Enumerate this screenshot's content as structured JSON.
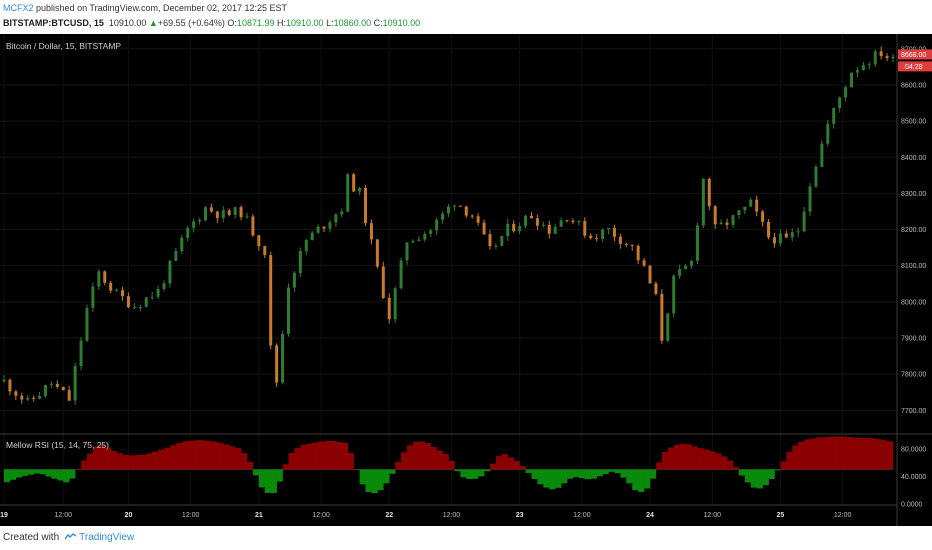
{
  "header": {
    "author": "MCFX2",
    "published_text": "published on TradingView.com, December 02, 2017 12:25 EST",
    "symbol": "BITSTAMP:BTCUSD, 15",
    "last": "10910.00",
    "change": "+69.55 (+0.64%)",
    "o_label": "O:",
    "o_value": "10871.99",
    "h_label": "H:",
    "h_value": "10910.00",
    "l_label": "L:",
    "l_value": "10860.00",
    "c_label": "C:",
    "c_value": "10910.00"
  },
  "footer": {
    "created_with": "Created with",
    "brand": "TradingView"
  },
  "colors": {
    "background": "#000000",
    "candle_up": "#2e7d32",
    "candle_down": "#c87b2a",
    "rsi_overbought": "#8b0000",
    "rsi_oversold": "#0a8a0a",
    "price_tag": "#e03e3e",
    "axis_text": "#bdbdbd",
    "author_link": "#2f8ede",
    "change_up": "#1a9a2e"
  },
  "chart_data": [
    {
      "type": "candlestick",
      "title": "Bitcoin / Dollar, 15, BITSTAMP",
      "ylim": [
        7640,
        8730
      ],
      "yticks": [
        "8700.00",
        "8600.00",
        "8500.00",
        "8400.00",
        "8300.00",
        "8200.00",
        "8100.00",
        "8000.00",
        "7900.00",
        "7800.00",
        "7700.00"
      ],
      "ytick_values": [
        8700,
        8600,
        8500,
        8400,
        8300,
        8200,
        8100,
        8000,
        7900,
        7800,
        7700
      ],
      "price_label": "8668.00",
      "countdown_label": "04:28",
      "price_value": 8668,
      "close_path": [
        [
          0,
          7780
        ],
        [
          4,
          7720
        ],
        [
          8,
          7775
        ],
        [
          11,
          7730
        ],
        [
          14,
          7980
        ],
        [
          16,
          8080
        ],
        [
          19,
          8020
        ],
        [
          22,
          7990
        ],
        [
          26,
          8030
        ],
        [
          31,
          8200
        ],
        [
          34,
          8260
        ],
        [
          37,
          8240
        ],
        [
          40,
          8250
        ],
        [
          44,
          8140
        ],
        [
          45,
          7870
        ],
        [
          46,
          7780
        ],
        [
          48,
          8050
        ],
        [
          51,
          8170
        ],
        [
          53,
          8200
        ],
        [
          57,
          8260
        ],
        [
          58,
          8340
        ],
        [
          60,
          8300
        ],
        [
          63,
          8090
        ],
        [
          65,
          7960
        ],
        [
          68,
          8170
        ],
        [
          72,
          8200
        ],
        [
          76,
          8280
        ],
        [
          79,
          8240
        ],
        [
          82,
          8140
        ],
        [
          85,
          8200
        ],
        [
          89,
          8240
        ],
        [
          92,
          8200
        ],
        [
          95,
          8240
        ],
        [
          99,
          8180
        ],
        [
          102,
          8200
        ],
        [
          106,
          8150
        ],
        [
          108,
          8090
        ],
        [
          110,
          8010
        ],
        [
          111,
          7900
        ],
        [
          113,
          8060
        ],
        [
          116,
          8110
        ],
        [
          118,
          8340
        ],
        [
          120,
          8200
        ],
        [
          123,
          8230
        ],
        [
          126,
          8270
        ],
        [
          129,
          8180
        ],
        [
          132,
          8170
        ],
        [
          134,
          8200
        ],
        [
          136,
          8330
        ],
        [
          139,
          8490
        ],
        [
          143,
          8640
        ],
        [
          146,
          8670
        ],
        [
          148,
          8690
        ],
        [
          150,
          8668
        ]
      ]
    },
    {
      "type": "area",
      "title": "Mellow RSI (15, 14, 75, 25)",
      "ylim": [
        0,
        100
      ],
      "midline": 50,
      "yticks": [
        "80.0000",
        "40.0000",
        "0.0000"
      ],
      "ytick_values": [
        80,
        40,
        0
      ],
      "x_ticks": [
        "19",
        "12:00",
        "20",
        "12:00",
        "21",
        "12:00",
        "22",
        "12:00",
        "23",
        "12:00",
        "24",
        "12:00",
        "25",
        "12:00"
      ],
      "x_tick_bold": [
        true,
        false,
        true,
        false,
        true,
        false,
        true,
        false,
        true,
        false,
        true,
        false,
        true,
        false
      ],
      "x_tick_positions": [
        0,
        10,
        21,
        31.5,
        43,
        53.5,
        65,
        75.5,
        87,
        97.5,
        109,
        119.5,
        131,
        141.5
      ],
      "values": [
        [
          0,
          30
        ],
        [
          3,
          40
        ],
        [
          6,
          45
        ],
        [
          8,
          38
        ],
        [
          11,
          30
        ],
        [
          13,
          58
        ],
        [
          16,
          88
        ],
        [
          19,
          75
        ],
        [
          21,
          70
        ],
        [
          24,
          72
        ],
        [
          27,
          80
        ],
        [
          30,
          90
        ],
        [
          33,
          93
        ],
        [
          36,
          90
        ],
        [
          38,
          85
        ],
        [
          40,
          80
        ],
        [
          42,
          55
        ],
        [
          43,
          28
        ],
        [
          45,
          12
        ],
        [
          46,
          20
        ],
        [
          48,
          70
        ],
        [
          50,
          85
        ],
        [
          53,
          90
        ],
        [
          55,
          92
        ],
        [
          58,
          88
        ],
        [
          59,
          60
        ],
        [
          61,
          18
        ],
        [
          63,
          15
        ],
        [
          65,
          35
        ],
        [
          67,
          70
        ],
        [
          69,
          90
        ],
        [
          71,
          91
        ],
        [
          73,
          80
        ],
        [
          75,
          70
        ],
        [
          77,
          40
        ],
        [
          79,
          35
        ],
        [
          81,
          42
        ],
        [
          84,
          75
        ],
        [
          87,
          60
        ],
        [
          89,
          40
        ],
        [
          91,
          25
        ],
        [
          93,
          20
        ],
        [
          96,
          40
        ],
        [
          99,
          35
        ],
        [
          101,
          42
        ],
        [
          103,
          48
        ],
        [
          105,
          35
        ],
        [
          107,
          15
        ],
        [
          109,
          25
        ],
        [
          111,
          72
        ],
        [
          113,
          85
        ],
        [
          115,
          88
        ],
        [
          117,
          82
        ],
        [
          119,
          78
        ],
        [
          121,
          72
        ],
        [
          123,
          60
        ],
        [
          125,
          35
        ],
        [
          127,
          20
        ],
        [
          129,
          30
        ],
        [
          131,
          55
        ],
        [
          133,
          82
        ],
        [
          135,
          93
        ],
        [
          138,
          97
        ],
        [
          141,
          98
        ],
        [
          144,
          96
        ],
        [
          147,
          95
        ],
        [
          150,
          90
        ]
      ]
    }
  ]
}
